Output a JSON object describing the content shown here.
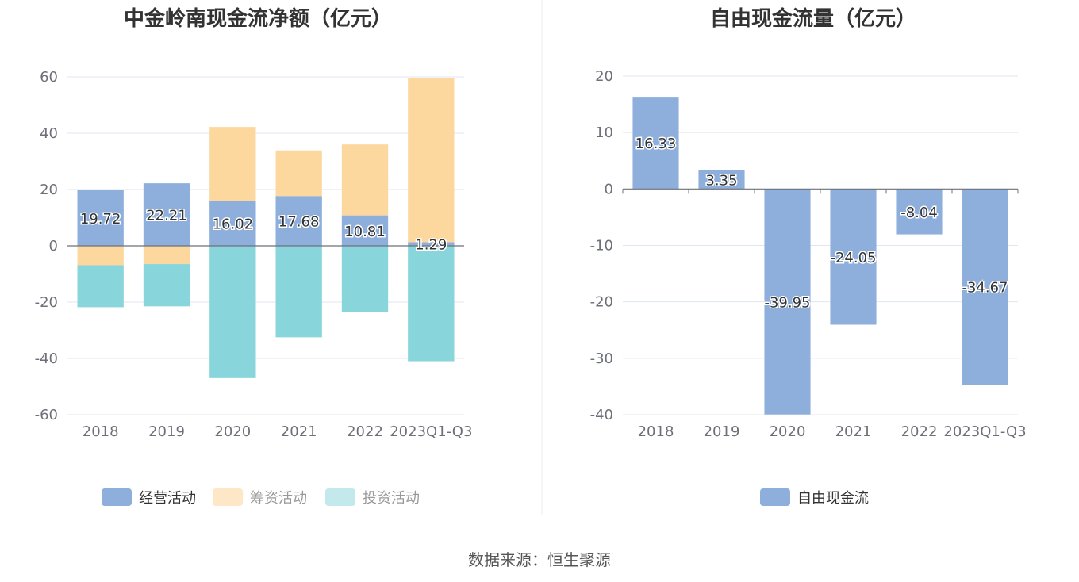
{
  "chart_data": [
    {
      "type": "bar",
      "stacked": true,
      "title": "中金岭南现金流净额（亿元）",
      "categories": [
        "2018",
        "2019",
        "2020",
        "2021",
        "2022",
        "2023Q1-Q3"
      ],
      "ylim": [
        -60,
        60
      ],
      "yticks": [
        60,
        40,
        20,
        0,
        -20,
        -40,
        -60
      ],
      "series": [
        {
          "name": "经营活动",
          "color": "#8eaedc",
          "values": [
            19.72,
            22.21,
            16.02,
            17.68,
            10.81,
            1.29
          ],
          "labels": [
            "19.72",
            "22.21",
            "16.02",
            "17.68",
            "10.81",
            "1.29"
          ]
        },
        {
          "name": "筹资活动",
          "color": "#fdd89e",
          "values": [
            -6.9,
            -6.5,
            26.2,
            16.2,
            25.2,
            58.4
          ]
        },
        {
          "name": "投资活动",
          "color": "#88d5db",
          "values": [
            -14.9,
            -15.0,
            -47.0,
            -32.5,
            -23.5,
            -41.0
          ]
        }
      ],
      "legend": [
        "经营活动",
        "筹资活动",
        "投资活动"
      ],
      "legend_colors": [
        "#8eaedc",
        "#fde7c6",
        "#c4e9ec"
      ],
      "legend_text_colors": [
        "#333333",
        "#999999",
        "#999999"
      ]
    },
    {
      "type": "bar",
      "title": "自由现金流量（亿元）",
      "categories": [
        "2018",
        "2019",
        "2020",
        "2021",
        "2022",
        "2023Q1-Q3"
      ],
      "ylim": [
        -40,
        20
      ],
      "yticks": [
        20,
        10,
        0,
        -10,
        -20,
        -30,
        -40
      ],
      "series": [
        {
          "name": "自由现金流",
          "color": "#8eaedc",
          "values": [
            16.33,
            3.35,
            -39.95,
            -24.05,
            -8.04,
            -34.67
          ],
          "labels": [
            "16.33",
            "3.35",
            "-39.95",
            "-24.05",
            "-8.04",
            "-34.67"
          ]
        }
      ],
      "legend": [
        "自由现金流"
      ],
      "legend_colors": [
        "#8eaedc"
      ],
      "legend_text_colors": [
        "#333333"
      ]
    }
  ],
  "source_text": "数据来源：恒生聚源"
}
